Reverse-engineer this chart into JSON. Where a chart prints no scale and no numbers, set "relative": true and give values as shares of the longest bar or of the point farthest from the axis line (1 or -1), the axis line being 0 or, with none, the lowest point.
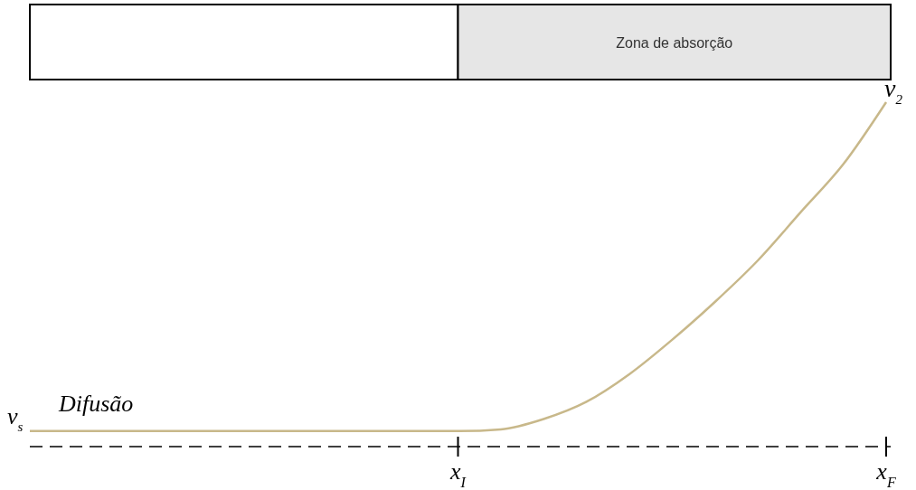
{
  "chart_data": {
    "type": "line",
    "relative": true,
    "categories": [
      null,
      null,
      null,
      null,
      null,
      null,
      null,
      null,
      null,
      null,
      "x$_{I}$",
      null,
      null,
      null,
      null,
      null,
      null,
      null,
      null,
      null,
      "x$_{F}$"
    ],
    "values": [
      0.045,
      0.045,
      0.045,
      0.045,
      0.045,
      0.045,
      0.045,
      0.045,
      0.045,
      0.045,
      0.045,
      0.05,
      0.08,
      0.13,
      0.21,
      0.31,
      0.42,
      0.54,
      0.68,
      0.82,
      1
    ],
    "color": "#c8b88a",
    "annotations": [
      "Zona de absorção",
      "v$_{s}$",
      "Difusão",
      {
        "text": "v$_{2}$",
        "x": "x$_{F}$",
        "y": 1
      }
    ]
  }
}
